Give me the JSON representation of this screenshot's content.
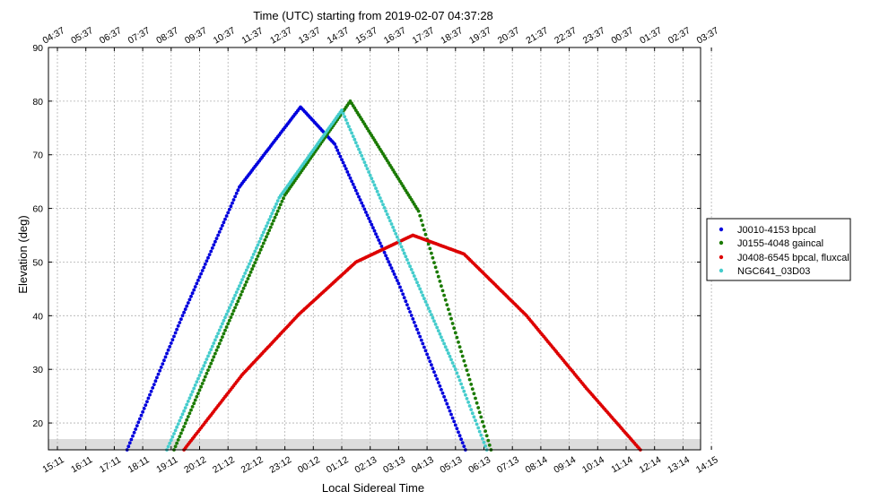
{
  "chart_data": {
    "type": "scatter",
    "title": "Time (UTC) starting from 2019-02-07 04:37:28",
    "xlabel": "Local Sidereal Time",
    "ylabel": "Elevation (deg)",
    "xlim": [
      0,
      23
    ],
    "ylim": [
      15,
      90
    ],
    "yticks": [
      20,
      30,
      40,
      50,
      60,
      70,
      80,
      90
    ],
    "x_unit": "hours since start",
    "bottom_tick_labels": [
      "15:11",
      "16:11",
      "17:11",
      "18:11",
      "19:11",
      "20:12",
      "21:12",
      "22:12",
      "23:12",
      "00:12",
      "01:12",
      "02:13",
      "03:13",
      "04:13",
      "05:13",
      "06:13",
      "07:13",
      "08:14",
      "09:14",
      "10:14",
      "11:14",
      "12:14",
      "13:14",
      "14:15"
    ],
    "top_tick_labels": [
      "04:37",
      "05:37",
      "06:37",
      "07:37",
      "08:37",
      "09:37",
      "10:37",
      "11:37",
      "12:37",
      "13:37",
      "14:37",
      "15:37",
      "16:37",
      "17:37",
      "18:37",
      "19:37",
      "20:37",
      "21:37",
      "22:37",
      "23:37",
      "00:37",
      "01:37",
      "02:37",
      "03:37"
    ],
    "elevation_limit_band": [
      15,
      17
    ],
    "grid": true,
    "legend_position": "right",
    "series": [
      {
        "name": "J0010-4153 bpcal",
        "color": "#0000dd",
        "x": [
          2.45,
          4.4,
          6.4,
          8.55,
          9.75,
          12.0,
          14.35
        ],
        "y": [
          15,
          40,
          64,
          78.9,
          72,
          46,
          15
        ]
      },
      {
        "name": "J0155-4048 gaincal",
        "color": "#1a7a00",
        "x": [
          4.1,
          6.0,
          8.0,
          10.3,
          12.7,
          15.25
        ],
        "y": [
          15,
          38.5,
          62.5,
          80,
          59.5,
          15
        ]
      },
      {
        "name": "J0408-6545 bpcal, fluxcal",
        "color": "#dd0000",
        "x": [
          4.45,
          6.5,
          8.5,
          10.5,
          12.5,
          14.3,
          16.5,
          18.6,
          20.5
        ],
        "y": [
          15,
          29,
          40.3,
          50,
          55,
          51.5,
          40,
          26.5,
          15
        ]
      },
      {
        "name": "NGC641_03D03",
        "color": "#44cccc",
        "x": [
          3.85,
          5.8,
          7.8,
          10.0,
          12.5,
          14.0,
          15.1
        ],
        "y": [
          15,
          38.5,
          62,
          78.3,
          48,
          30,
          15
        ]
      }
    ]
  }
}
